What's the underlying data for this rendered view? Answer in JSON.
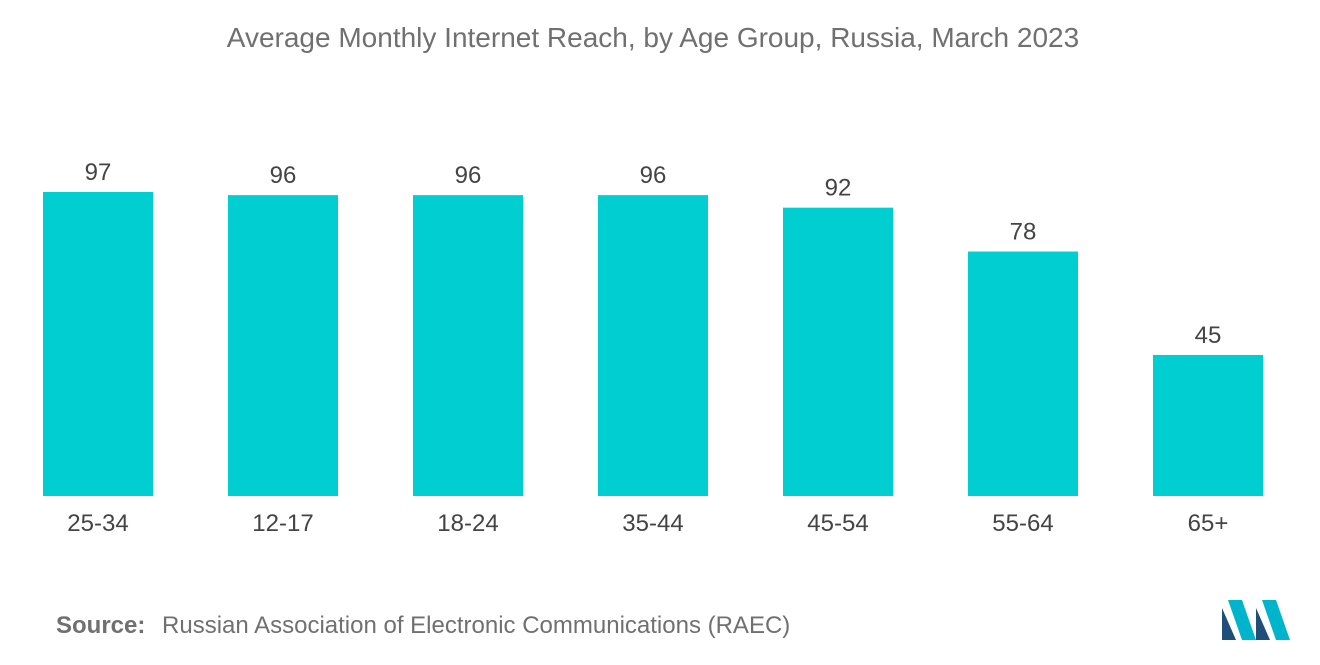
{
  "chart_data": {
    "type": "bar",
    "title": "Average Monthly Internet Reach, by Age Group, Russia, March 2023",
    "categories": [
      "25-34",
      "12-17",
      "18-24",
      "35-44",
      "45-54",
      "55-64",
      "65+"
    ],
    "values": [
      97,
      96,
      96,
      96,
      92,
      78,
      45
    ],
    "xlabel": "",
    "ylabel": "",
    "ylim": [
      0,
      97
    ],
    "grid": false,
    "legend": "none",
    "data_labels": true
  },
  "colors": {
    "bar": "#00CED1",
    "text": "#444444",
    "title": "#707070",
    "logo_dark": "#1F4E79",
    "logo_light": "#00B4CC"
  },
  "source": {
    "label": "Source:",
    "text": "Russian Association of Electronic Communications (RAEC)"
  },
  "logo": {
    "icon": "mordor-intelligence-logo"
  }
}
